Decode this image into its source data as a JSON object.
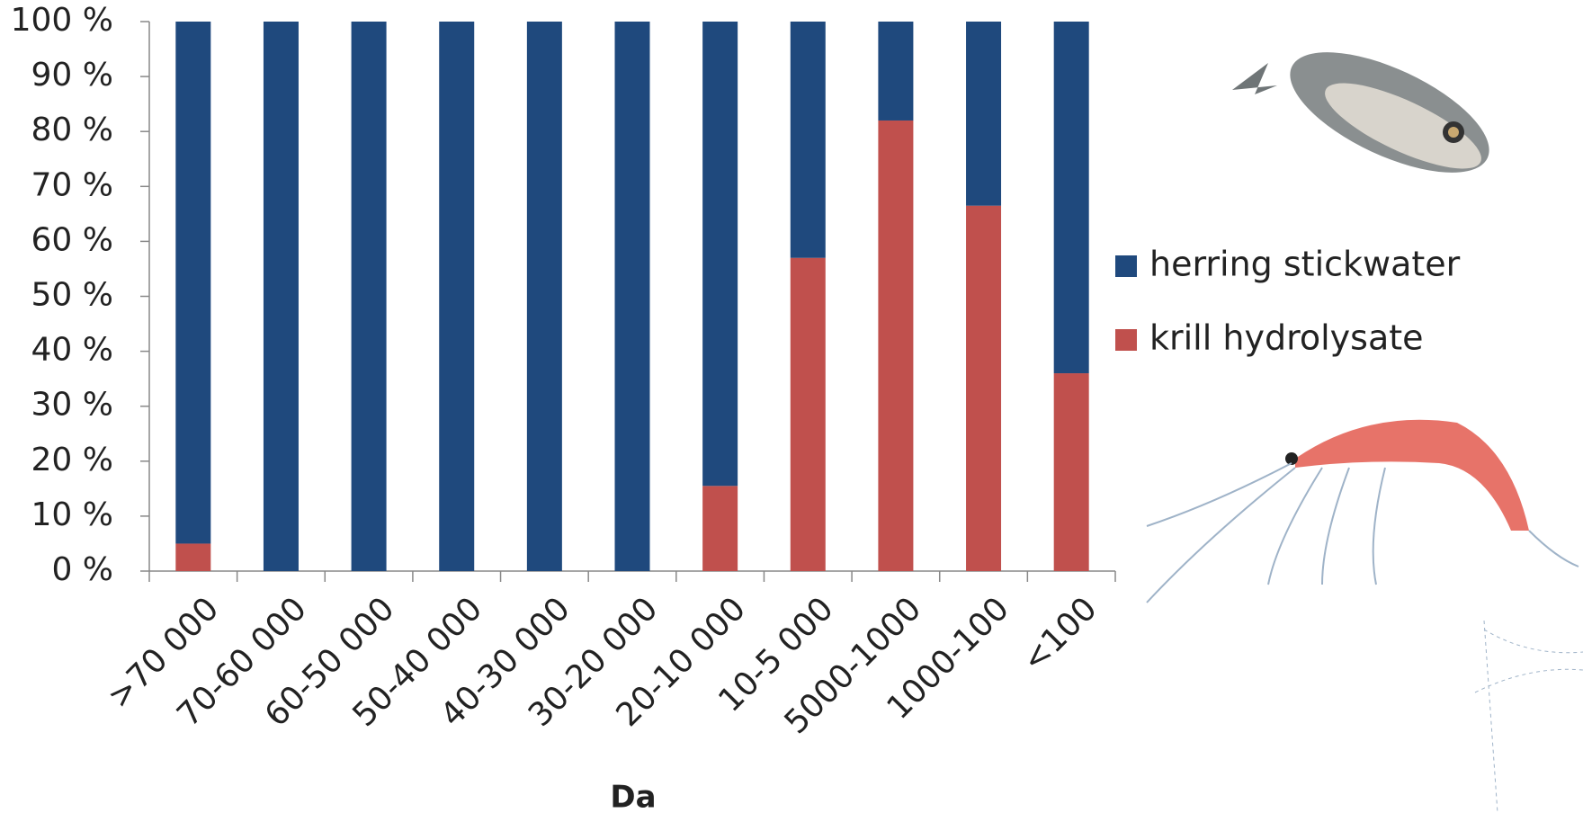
{
  "chart_data": {
    "type": "stacked_bar",
    "x_label": "Da",
    "categories": [
      ">70 000",
      "70-60 000",
      "60-50 000",
      "50-40 000",
      "40-30 000",
      "30-20 000",
      "20-10 000",
      "10-5 000",
      "5000-1000",
      "1000-100",
      "<100"
    ],
    "series": [
      {
        "name": "herring stickwater",
        "color": "#1f497d",
        "values": [
          95,
          100,
          100,
          100,
          100,
          100,
          84.5,
          43,
          18,
          33.5,
          64
        ]
      },
      {
        "name": "krill hydrolysate",
        "color": "#c0504d",
        "values": [
          5,
          0,
          0,
          0,
          0,
          0,
          15.5,
          57,
          82,
          66.5,
          36
        ]
      }
    ],
    "ylim": [
      0,
      100
    ],
    "yticks": [
      {
        "value": 0,
        "label": "0 %"
      },
      {
        "value": 10,
        "label": "10 %"
      },
      {
        "value": 20,
        "label": "20 %"
      },
      {
        "value": 30,
        "label": "30 %"
      },
      {
        "value": 40,
        "label": "40 %"
      },
      {
        "value": 50,
        "label": "50 %"
      },
      {
        "value": 60,
        "label": "60 %"
      },
      {
        "value": 70,
        "label": "70 %"
      },
      {
        "value": 80,
        "label": "80 %"
      },
      {
        "value": 90,
        "label": "90 %"
      },
      {
        "value": 100,
        "label": "100 %"
      }
    ],
    "grid": false,
    "legend": "right"
  }
}
